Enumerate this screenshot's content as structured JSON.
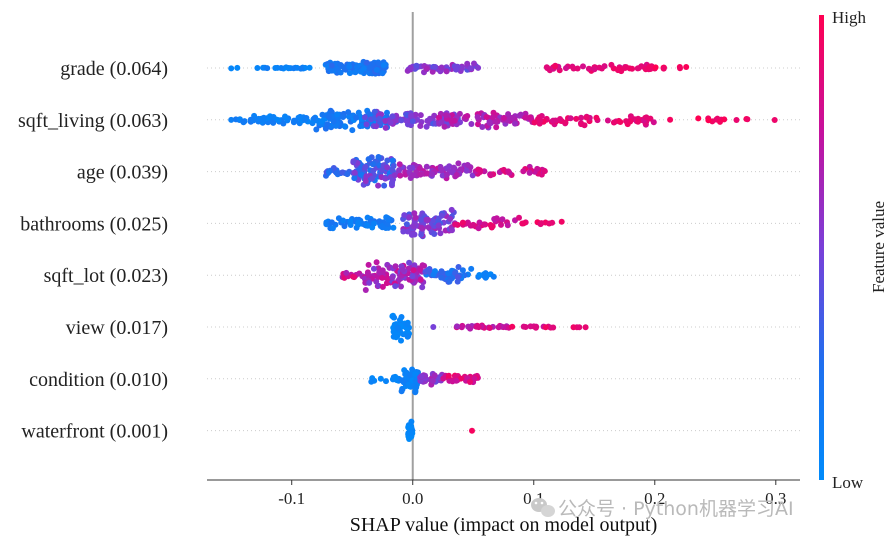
{
  "chart_data": {
    "type": "scatter",
    "subtype": "shap-beeswarm",
    "xlabel": "SHAP value (impact on model output)",
    "xlim": [
      -0.17,
      0.32
    ],
    "x_ticks": [
      -0.1,
      0.0,
      0.1,
      0.2,
      0.3
    ],
    "x_tick_labels": [
      "-0.1",
      "0.0",
      "0.1",
      "0.2",
      "0.3"
    ],
    "colorbar": {
      "label": "Feature value",
      "high_label": "High",
      "low_label": "Low",
      "low_color": "#008bfb",
      "high_color": "#ff0052"
    },
    "features": [
      {
        "name": "grade",
        "importance": "0.064",
        "label": "grade (0.064)",
        "clusters": [
          [
            -0.15,
            -0.085,
            0.05,
            25,
            0.02,
            0.15
          ],
          [
            -0.072,
            -0.022,
            0.45,
            120,
            0.1,
            0.3
          ],
          [
            -0.005,
            0.055,
            0.3,
            55,
            0.4,
            0.65
          ],
          [
            0.11,
            0.2,
            0.22,
            50,
            0.8,
            0.95
          ],
          [
            0.2,
            0.235,
            0.1,
            8,
            0.9,
            1.0
          ]
        ]
      },
      {
        "name": "sqft_living",
        "importance": "0.063",
        "label": "sqft_living (0.063)",
        "clusters": [
          [
            -0.15,
            -0.08,
            0.3,
            55,
            0.02,
            0.18
          ],
          [
            -0.08,
            -0.02,
            0.75,
            95,
            0.05,
            0.25
          ],
          [
            -0.04,
            0.04,
            0.6,
            80,
            0.35,
            0.6
          ],
          [
            0.02,
            0.1,
            0.55,
            70,
            0.55,
            0.8
          ],
          [
            0.1,
            0.2,
            0.4,
            55,
            0.8,
            0.95
          ],
          [
            0.2,
            0.3,
            0.18,
            14,
            0.9,
            1.0
          ]
        ]
      },
      {
        "name": "age",
        "importance": "0.039",
        "label": "age (0.039)",
        "clusters": [
          [
            -0.072,
            -0.05,
            0.3,
            18,
            0.2,
            0.45
          ],
          [
            -0.05,
            -0.015,
            0.95,
            90,
            0.15,
            0.6
          ],
          [
            -0.015,
            0.05,
            0.55,
            75,
            0.5,
            0.75
          ],
          [
            0.05,
            0.11,
            0.3,
            30,
            0.7,
            0.9
          ]
        ]
      },
      {
        "name": "bathrooms",
        "importance": "0.025",
        "label": "bathrooms (0.025)",
        "clusters": [
          [
            -0.072,
            -0.015,
            0.45,
            60,
            0.05,
            0.22
          ],
          [
            -0.008,
            0.035,
            0.95,
            85,
            0.35,
            0.65
          ],
          [
            0.035,
            0.09,
            0.38,
            30,
            0.7,
            0.92
          ],
          [
            0.09,
            0.135,
            0.12,
            10,
            0.85,
            1.0
          ]
        ]
      },
      {
        "name": "sqft_lot",
        "importance": "0.023",
        "label": "sqft_lot (0.023)",
        "clusters": [
          [
            -0.058,
            -0.04,
            0.25,
            12,
            0.6,
            0.9
          ],
          [
            -0.04,
            0.01,
            0.95,
            100,
            0.45,
            0.8
          ],
          [
            0.01,
            0.05,
            0.55,
            45,
            0.1,
            0.4
          ],
          [
            0.05,
            0.068,
            0.2,
            10,
            0.02,
            0.15
          ]
        ]
      },
      {
        "name": "view",
        "importance": "0.017",
        "label": "view (0.017)",
        "clusters": [
          [
            -0.017,
            -0.003,
            0.95,
            45,
            0.0,
            0.1
          ],
          [
            0.017,
            0.017,
            0.02,
            1,
            0.45,
            0.5
          ],
          [
            0.035,
            0.08,
            0.12,
            28,
            0.6,
            0.9
          ],
          [
            0.08,
            0.12,
            0.08,
            12,
            0.75,
            1.0
          ],
          [
            0.13,
            0.15,
            0.03,
            4,
            0.85,
            1.0
          ]
        ]
      },
      {
        "name": "condition",
        "importance": "0.010",
        "label": "condition (0.010)",
        "clusters": [
          [
            -0.035,
            -0.01,
            0.2,
            12,
            0.02,
            0.1
          ],
          [
            -0.01,
            0.005,
            0.95,
            50,
            0.0,
            0.15
          ],
          [
            0.005,
            0.025,
            0.45,
            30,
            0.45,
            0.7
          ],
          [
            0.025,
            0.055,
            0.28,
            28,
            0.75,
            0.95
          ]
        ]
      },
      {
        "name": "waterfront",
        "importance": "0.001",
        "label": "waterfront (0.001)",
        "clusters": [
          [
            -0.004,
            0.0,
            0.7,
            24,
            0.0,
            0.06
          ],
          [
            0.049,
            0.049,
            0.01,
            1,
            0.92,
            0.96
          ]
        ]
      }
    ],
    "cluster_format": "[x_min, x_max, spread_fraction, point_count, value_min, value_max]"
  },
  "watermark": {
    "icon": "wechat-icon",
    "text": "公众号 · Python机器学习AI"
  }
}
